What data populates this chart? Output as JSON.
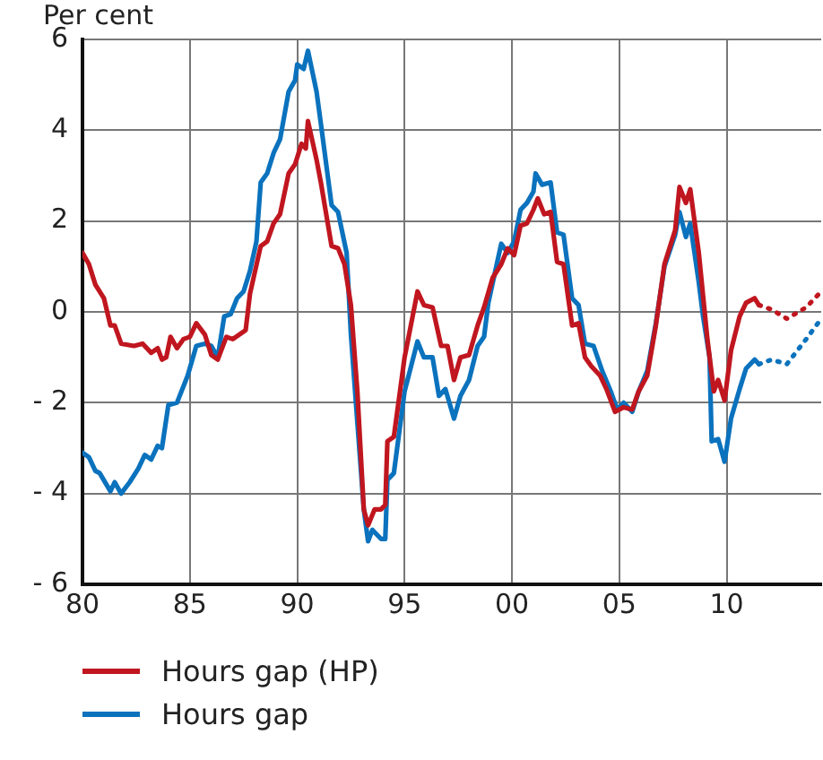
{
  "chart_data": {
    "type": "line",
    "ylabel": "Per cent",
    "xlim": [
      1980,
      2014.4
    ],
    "xticks": [
      {
        "value": 1980,
        "label": "80"
      },
      {
        "value": 1985,
        "label": "85"
      },
      {
        "value": 1990,
        "label": "90"
      },
      {
        "value": 1995,
        "label": "95"
      },
      {
        "value": 2000,
        "label": "00"
      },
      {
        "value": 2005,
        "label": "05"
      },
      {
        "value": 2010,
        "label": "10"
      }
    ],
    "ylim": [
      -6,
      6
    ],
    "yticks": [
      {
        "value": -6,
        "label": "- 6"
      },
      {
        "value": -4,
        "label": "- 4"
      },
      {
        "value": -2,
        "label": "- 2"
      },
      0,
      2,
      4,
      6
    ],
    "grid": true,
    "legend": "bottom",
    "marker": "none",
    "series": [
      {
        "name": "Hours gap (HP)",
        "color": "#c0161f",
        "line_style": "solid",
        "x": [
          1980.0,
          1980.3,
          1980.6,
          1981.0,
          1981.3,
          1981.5,
          1981.8,
          1982.4,
          1982.8,
          1983.2,
          1983.5,
          1983.7,
          1983.9,
          1984.1,
          1984.4,
          1984.7,
          1985.0,
          1985.3,
          1985.7,
          1986.0,
          1986.3,
          1986.7,
          1987.0,
          1987.3,
          1987.6,
          1987.8,
          1988.3,
          1988.6,
          1988.9,
          1989.2,
          1989.6,
          1989.9,
          1990.2,
          1990.4,
          1990.5,
          1990.9,
          1991.1,
          1991.6,
          1991.9,
          1992.2,
          1992.5,
          1992.8,
          1993.1,
          1993.3,
          1993.6,
          1993.9,
          1994.1,
          1994.2,
          1994.5,
          1995.0,
          1995.6,
          1995.9,
          1996.3,
          1996.7,
          1997.0,
          1997.3,
          1997.6,
          1998.0,
          1998.4,
          1998.7,
          1999.1,
          1999.5,
          1999.8,
          2000.1,
          2000.4,
          2000.7,
          2001.0,
          2001.2,
          2001.5,
          2001.8,
          2002.1,
          2002.4,
          2002.8,
          2003.1,
          2003.4,
          2003.7,
          2004.1,
          2004.4,
          2004.8,
          2005.2,
          2005.6,
          2005.9,
          2006.3,
          2006.7,
          2007.1,
          2007.6,
          2007.8,
          2008.1,
          2008.3,
          2008.7,
          2009.1,
          2009.4,
          2009.6,
          2009.9,
          2010.2,
          2010.6,
          2010.9,
          2011.3,
          2011.5
        ],
        "values": [
          1.3,
          1.05,
          0.6,
          0.3,
          -0.3,
          -0.3,
          -0.7,
          -0.75,
          -0.7,
          -0.9,
          -0.8,
          -1.05,
          -1.0,
          -0.55,
          -0.8,
          -0.6,
          -0.55,
          -0.25,
          -0.5,
          -0.95,
          -1.05,
          -0.55,
          -0.6,
          -0.5,
          -0.4,
          0.4,
          1.45,
          1.55,
          1.95,
          2.15,
          3.05,
          3.25,
          3.7,
          3.6,
          4.2,
          3.35,
          2.85,
          1.45,
          1.4,
          1.05,
          0.15,
          -1.75,
          -4.35,
          -4.7,
          -4.35,
          -4.35,
          -4.25,
          -2.85,
          -2.75,
          -1.0,
          0.45,
          0.15,
          0.1,
          -0.75,
          -0.75,
          -1.5,
          -1.0,
          -0.95,
          -0.3,
          0.1,
          0.75,
          1.05,
          1.4,
          1.25,
          1.9,
          1.95,
          2.25,
          2.5,
          2.15,
          2.2,
          1.1,
          1.05,
          -0.3,
          -0.25,
          -1.0,
          -1.2,
          -1.4,
          -1.7,
          -2.2,
          -2.1,
          -2.15,
          -1.75,
          -1.4,
          -0.3,
          1.05,
          1.8,
          2.75,
          2.4,
          2.7,
          1.3,
          -0.6,
          -1.75,
          -1.5,
          -1.95,
          -0.85,
          -0.1,
          0.2,
          0.3,
          0.15
        ]
      },
      {
        "color": "#c0161f",
        "line_style": "dotted",
        "x": [
          2011.5,
          2012.1,
          2012.8,
          2013.7,
          2014.4
        ],
        "values": [
          0.15,
          0.05,
          -0.15,
          0.1,
          0.45
        ]
      },
      {
        "name": "Hours gap",
        "color": "#0b72bd",
        "line_style": "solid",
        "x": [
          1980.0,
          1980.3,
          1980.6,
          1980.8,
          1981.3,
          1981.5,
          1981.8,
          1982.2,
          1982.6,
          1982.9,
          1983.2,
          1983.5,
          1983.7,
          1984.0,
          1984.4,
          1984.9,
          1985.3,
          1985.7,
          1986.0,
          1986.3,
          1986.6,
          1986.9,
          1987.2,
          1987.5,
          1987.8,
          1988.1,
          1988.3,
          1988.6,
          1988.9,
          1989.2,
          1989.6,
          1989.9,
          1990.0,
          1990.3,
          1990.5,
          1990.9,
          1991.1,
          1991.6,
          1991.9,
          1992.3,
          1992.5,
          1993.1,
          1993.3,
          1993.5,
          1993.9,
          1994.1,
          1994.2,
          1994.5,
          1995.0,
          1995.6,
          1995.9,
          1996.3,
          1996.6,
          1996.9,
          1997.3,
          1997.6,
          1998.0,
          1998.4,
          1998.7,
          1998.9,
          1999.5,
          1999.8,
          2000.1,
          2000.4,
          2000.7,
          2001.0,
          2001.1,
          2001.4,
          2001.8,
          2002.1,
          2002.4,
          2002.8,
          2003.1,
          2003.4,
          2003.8,
          2004.2,
          2004.6,
          2004.9,
          2005.2,
          2005.6,
          2005.9,
          2006.3,
          2006.7,
          2007.1,
          2007.6,
          2007.8,
          2008.1,
          2008.3,
          2008.7,
          2008.9,
          2009.2,
          2009.3,
          2009.6,
          2009.9,
          2010.2,
          2010.6,
          2010.9,
          2011.3,
          2011.5
        ],
        "values": [
          -3.1,
          -3.2,
          -3.5,
          -3.55,
          -3.95,
          -3.75,
          -4.0,
          -3.75,
          -3.45,
          -3.15,
          -3.25,
          -2.95,
          -3.0,
          -2.05,
          -2.0,
          -1.4,
          -0.75,
          -0.7,
          -0.75,
          -1.0,
          -0.1,
          -0.05,
          0.3,
          0.45,
          0.9,
          1.55,
          2.85,
          3.05,
          3.5,
          3.8,
          4.85,
          5.1,
          5.45,
          5.35,
          5.75,
          4.85,
          4.15,
          2.35,
          2.2,
          1.3,
          -0.5,
          -4.35,
          -5.05,
          -4.8,
          -5.0,
          -5.0,
          -3.7,
          -3.55,
          -1.75,
          -0.65,
          -1.0,
          -1.0,
          -1.85,
          -1.7,
          -2.35,
          -1.85,
          -1.5,
          -0.75,
          -0.55,
          0.2,
          1.5,
          1.3,
          1.55,
          2.25,
          2.4,
          2.65,
          3.05,
          2.8,
          2.85,
          1.75,
          1.7,
          0.3,
          0.15,
          -0.7,
          -0.75,
          -1.3,
          -1.75,
          -2.15,
          -2.0,
          -2.2,
          -1.75,
          -1.3,
          -0.25,
          1.0,
          1.7,
          2.2,
          1.65,
          1.95,
          0.65,
          -0.1,
          -1.0,
          -2.85,
          -2.8,
          -3.3,
          -2.35,
          -1.7,
          -1.25,
          -1.05,
          -1.15
        ]
      },
      {
        "color": "#0b72bd",
        "line_style": "dotted",
        "x": [
          2011.5,
          2012.1,
          2012.8,
          2013.7,
          2014.4
        ],
        "values": [
          -1.15,
          -1.05,
          -1.15,
          -0.6,
          -0.15
        ]
      }
    ]
  }
}
